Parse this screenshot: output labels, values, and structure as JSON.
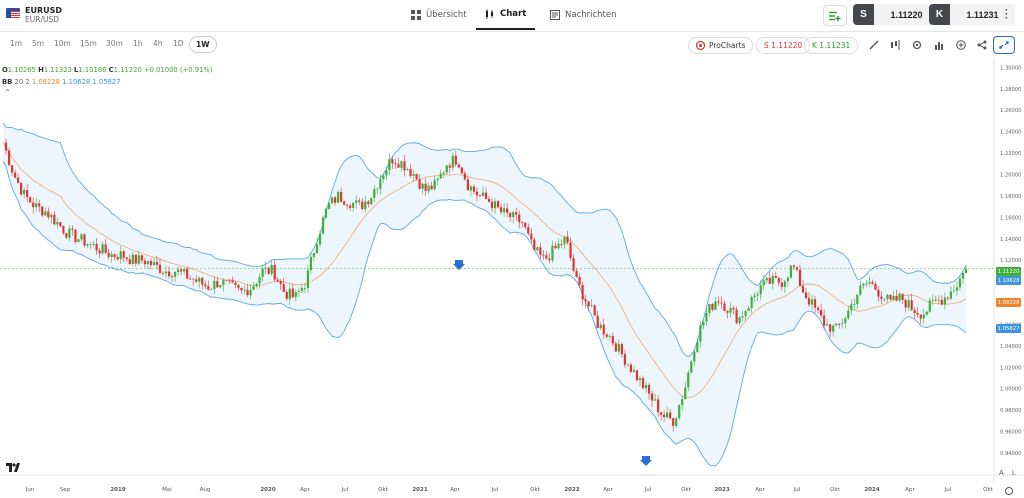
{
  "instrument": {
    "symbol": "EURUSD",
    "pair": "EUR/USD"
  },
  "nav": {
    "overview": "Übersicht",
    "chart": "Chart",
    "news": "Nachrichten"
  },
  "trade": {
    "sell_key": "S",
    "sell_price": "1.11220",
    "buy_key": "K",
    "buy_price": "1.11231"
  },
  "timeframes": [
    "1m",
    "5m",
    "10m",
    "15m",
    "30m",
    "1h",
    "4h",
    "1D",
    "1W"
  ],
  "active_timeframe": "1W",
  "toolbar": {
    "prochart": "ProCharts",
    "sell": "S 1.11220",
    "buy": "K 1.11231"
  },
  "legend": {
    "o_label": "O",
    "o": "1.10265",
    "h_label": "H",
    "h": "1.11323",
    "l_label": "L",
    "l": "1.10186",
    "c_label": "C",
    "c": "1.11220",
    "change": "+0.01000 (+0.91%)",
    "bb_label": "BB",
    "bb_params": "20 2",
    "bb_mid": "1.08228",
    "bb_upper": "1.10628",
    "bb_lower": "1.05827"
  },
  "price_badges": {
    "last": "1.11220",
    "upper": "1.10628",
    "mid": "1.08228",
    "lower": "1.05827"
  },
  "axis_buttons": {
    "auto": "A",
    "log": "L"
  },
  "chart_data": {
    "type": "candlestick",
    "series_name": "EURUSD",
    "indicator": "BB 20 2",
    "ylim": [
      0.94,
      1.305
    ],
    "y_ticks": [
      1.3,
      1.28,
      1.26,
      1.24,
      1.22,
      1.2,
      1.18,
      1.16,
      1.14,
      1.12,
      1.1,
      1.08,
      1.06,
      1.04,
      1.02,
      1.0,
      0.98,
      0.96,
      0.94
    ],
    "x_ticks": [
      "Jun",
      "Sep",
      "2019",
      "Mai",
      "Aug",
      "2020",
      "Apr",
      "Jul",
      "Okt",
      "2021",
      "Apr",
      "Jul",
      "Okt",
      "2022",
      "Apr",
      "Jul",
      "Okt",
      "2023",
      "Apr",
      "Jul",
      "Okt",
      "2024",
      "Apr",
      "Jul",
      "Okt"
    ],
    "close_trend": [
      1.23,
      1.2,
      1.18,
      1.17,
      1.165,
      1.155,
      1.145,
      1.14,
      1.135,
      1.13,
      1.125,
      1.125,
      1.12,
      1.12,
      1.115,
      1.11,
      1.11,
      1.105,
      1.1,
      1.095,
      1.1,
      1.095,
      1.09,
      1.095,
      1.11,
      1.11,
      1.09,
      1.085,
      1.1,
      1.14,
      1.17,
      1.18,
      1.175,
      1.17,
      1.18,
      1.2,
      1.215,
      1.21,
      1.2,
      1.185,
      1.19,
      1.21,
      1.215,
      1.19,
      1.18,
      1.175,
      1.165,
      1.16,
      1.155,
      1.13,
      1.12,
      1.13,
      1.14,
      1.1,
      1.08,
      1.06,
      1.05,
      1.035,
      1.02,
      1.005,
      0.99,
      0.975,
      0.97,
      1.0,
      1.045,
      1.07,
      1.085,
      1.075,
      1.065,
      1.08,
      1.095,
      1.1,
      1.1,
      1.115,
      1.09,
      1.075,
      1.06,
      1.055,
      1.07,
      1.09,
      1.1,
      1.09,
      1.08,
      1.085,
      1.075,
      1.07,
      1.08,
      1.085,
      1.095,
      1.112
    ],
    "markers": [
      {
        "type": "down-arrow",
        "date": "2021"
      },
      {
        "type": "down-arrow",
        "date": "2022"
      }
    ]
  },
  "colors": {
    "up": "#3fae3b",
    "down": "#e0352f",
    "bb_band": "#5aa9e6",
    "bb_mid": "#f0842c",
    "accent": "#2a6ac9"
  }
}
